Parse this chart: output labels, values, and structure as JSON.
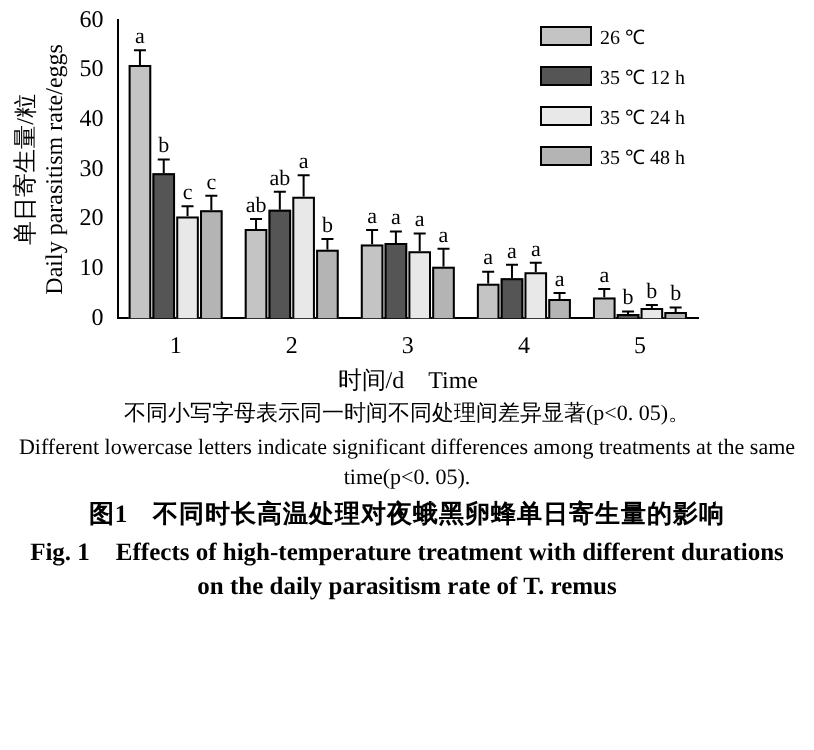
{
  "chart_data": {
    "type": "bar",
    "title": "图1　不同时长高温处理对夜蛾黑卵蜂单日寄生量的影响",
    "subtitle": "Fig. 1　Effects of high-temperature treatment with different durations on the daily parasitism rate of T. remus",
    "xlabel": "时间/d　Time",
    "ylabel": "单日寄生量/粒\nDaily parasitism rate/eggs",
    "annotations": [
      "不同小写字母表示同一时间不同处理间差异显著(p<0. 05)。",
      "Different lowercase letters indicate significant differences among treatments at the same time(p<0. 05)."
    ],
    "categories": [
      "1",
      "2",
      "3",
      "4",
      "5"
    ],
    "series": [
      {
        "name": "26 ℃",
        "color": "#c4c4c4",
        "values": [
          51,
          18,
          14.9,
          7,
          4.2
        ],
        "errors": [
          [
            51,
            54
          ],
          [
            18,
            20
          ],
          [
            14.9,
            17.8
          ],
          [
            7,
            9.4
          ],
          [
            4.2,
            5.9
          ]
        ],
        "value_labels": [
          "a",
          "ab",
          "a",
          "a",
          "a"
        ]
      },
      {
        "name": "35 ℃ 12 h",
        "color": "#555555",
        "values": [
          29.2,
          21.9,
          15.2,
          8.1,
          0.9
        ],
        "errors": [
          [
            29.2,
            32
          ],
          [
            21.9,
            25.5
          ],
          [
            15.2,
            17.5
          ],
          [
            8.1,
            10.8
          ],
          [
            0.9,
            1.4
          ]
        ],
        "value_labels": [
          "b",
          "ab",
          "a",
          "a",
          "b"
        ]
      },
      {
        "name": "35 ℃ 24 h",
        "color": "#e8e8e8",
        "values": [
          20.5,
          24.5,
          13.5,
          9.3,
          2.1
        ],
        "errors": [
          [
            20.5,
            22.6
          ],
          [
            24.5,
            28.8
          ],
          [
            13.5,
            17.1
          ],
          [
            9.3,
            11.2
          ],
          [
            2.1,
            2.7
          ]
        ],
        "value_labels": [
          "c",
          "a",
          "a",
          "a",
          "b"
        ]
      },
      {
        "name": "35 ℃ 48 h",
        "color": "#b4b4b4",
        "values": [
          21.8,
          13.8,
          10.4,
          3.9,
          1.3
        ],
        "errors": [
          [
            21.8,
            24.7
          ],
          [
            13.8,
            16
          ],
          [
            10.4,
            14
          ],
          [
            3.9,
            5.1
          ],
          [
            1.3,
            2.2
          ]
        ],
        "value_labels": [
          "c",
          "b",
          "a",
          "a",
          "b"
        ]
      }
    ],
    "ylim": [
      0,
      60
    ],
    "yticks": [
      0,
      10,
      20,
      30,
      40,
      50,
      60
    ],
    "grid": false,
    "legend": "top right"
  }
}
